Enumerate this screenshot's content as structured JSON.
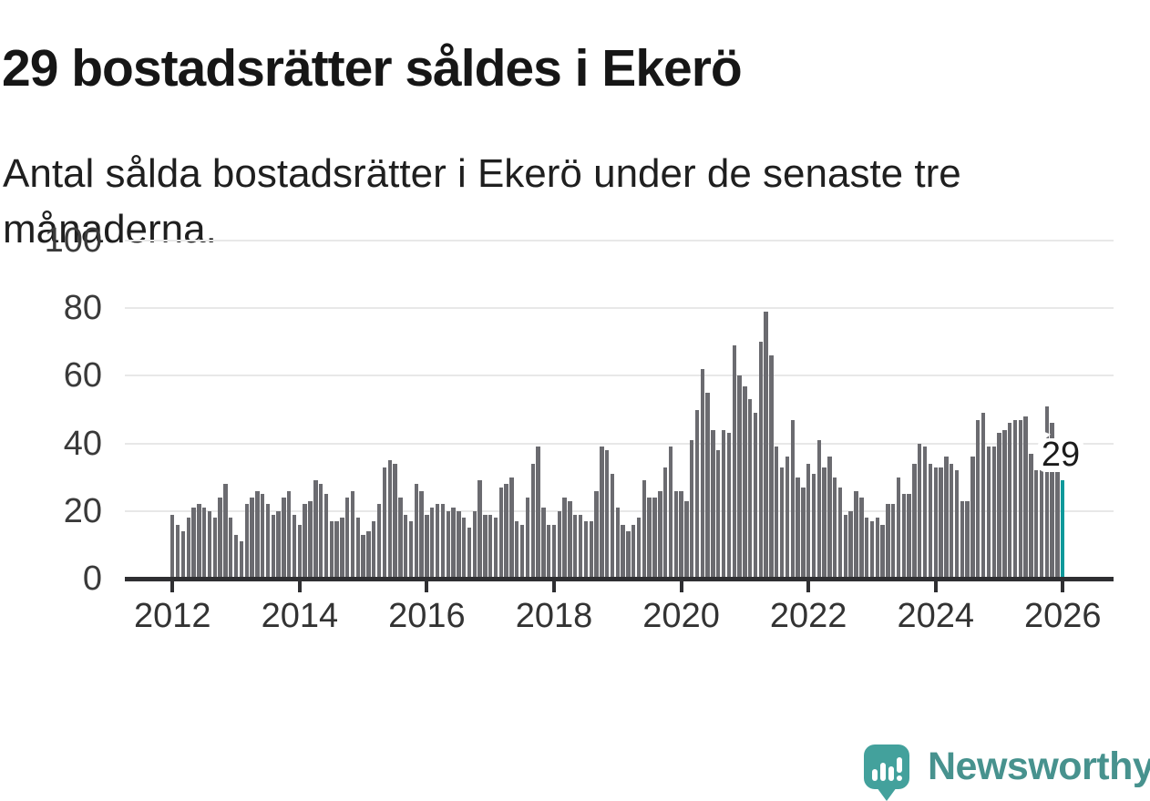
{
  "header": {
    "title": "29 bostadsrätter såldes i Ekerö",
    "subtitle": "Antal sålda bostadsrätter i Ekerö under de senaste tre månaderna."
  },
  "chart_data": {
    "type": "bar",
    "title": "29 bostadsrätter såldes i Ekerö",
    "xlabel": "",
    "ylabel": "",
    "x_start": "2012-01",
    "x_end": "2026-01",
    "frequency": "monthly",
    "values": [
      19,
      16,
      14,
      18,
      21,
      22,
      21,
      20,
      18,
      24,
      28,
      18,
      13,
      11,
      22,
      24,
      26,
      25,
      22,
      19,
      20,
      24,
      26,
      19,
      16,
      22,
      23,
      29,
      28,
      25,
      17,
      17,
      18,
      24,
      26,
      18,
      13,
      14,
      17,
      22,
      33,
      35,
      34,
      24,
      19,
      17,
      28,
      26,
      19,
      21,
      22,
      22,
      20,
      21,
      20,
      18,
      15,
      20,
      29,
      19,
      19,
      18,
      27,
      28,
      30,
      17,
      16,
      24,
      34,
      39,
      21,
      16,
      16,
      20,
      24,
      23,
      19,
      19,
      17,
      17,
      26,
      39,
      38,
      31,
      21,
      16,
      14,
      16,
      18,
      29,
      24,
      24,
      26,
      33,
      39,
      26,
      26,
      23,
      41,
      50,
      62,
      55,
      44,
      38,
      44,
      43,
      69,
      60,
      57,
      53,
      49,
      70,
      79,
      66,
      39,
      33,
      36,
      47,
      30,
      27,
      34,
      31,
      41,
      33,
      36,
      30,
      27,
      19,
      20,
      26,
      24,
      18,
      17,
      18,
      16,
      22,
      22,
      30,
      25,
      25,
      34,
      40,
      39,
      34,
      33,
      33,
      36,
      34,
      32,
      23,
      23,
      36,
      47,
      49,
      39,
      39,
      43,
      44,
      46,
      47,
      47,
      48,
      37,
      32,
      32,
      51,
      46,
      33,
      29
    ],
    "latest_value": 29,
    "highlight_last": true,
    "ylim": [
      0,
      100
    ],
    "yticks": [
      0,
      20,
      40,
      60,
      80,
      100
    ],
    "xticks": [
      2012,
      2014,
      2016,
      2018,
      2020,
      2022,
      2024,
      2026
    ],
    "grid": true,
    "legend": "none",
    "bar_color": "#6b6b70",
    "highlight_color": "#0e999b",
    "annotation": {
      "label": "29"
    }
  },
  "footer": {
    "brand": "Newsworthy"
  },
  "colors": {
    "background": "#ffffff",
    "text": "#161616",
    "axis": "#2f2f32",
    "gridline": "#e8e8e8",
    "bar": "#6b6b70",
    "highlight": "#0e999b",
    "brand_bubble": "#43a19c",
    "brand_text": "#47928e"
  }
}
